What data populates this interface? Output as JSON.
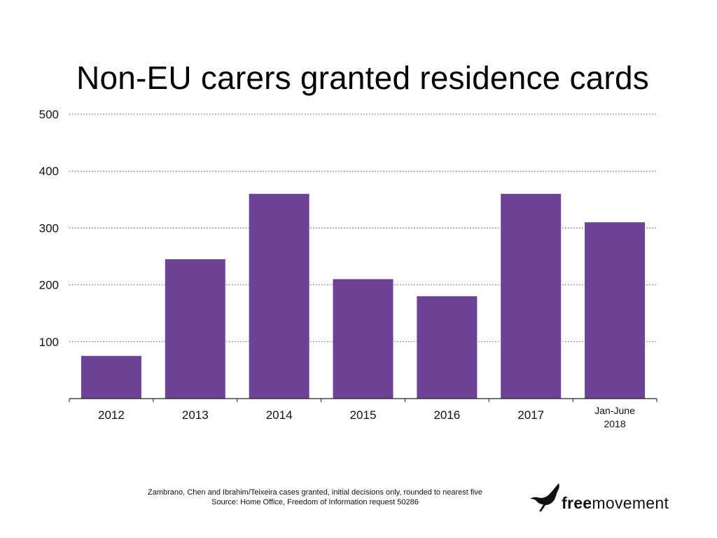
{
  "chart_data": {
    "type": "bar",
    "title": "Non-EU carers granted residence cards",
    "categories": [
      "2012",
      "2013",
      "2014",
      "2015",
      "2016",
      "2017",
      "Jan-June 2018"
    ],
    "category_lines": [
      [
        "2012"
      ],
      [
        "2013"
      ],
      [
        "2014"
      ],
      [
        "2015"
      ],
      [
        "2016"
      ],
      [
        "2017"
      ],
      [
        "Jan-June",
        "2018"
      ]
    ],
    "values": [
      75,
      245,
      360,
      210,
      180,
      360,
      310
    ],
    "ylim": [
      0,
      500
    ],
    "yticks": [
      100,
      200,
      300,
      400,
      500
    ],
    "xlabel": "",
    "ylabel": "",
    "grid": "horizontal dotted",
    "bar_color": "#6e4293"
  },
  "footnote": {
    "line1": "Zambrano, Chen and Ibrahim/Teixeira cases granted, initial decisions only, rounded to nearest five",
    "line2": "Source: Home Office, Freedom of Information request 50286"
  },
  "logo": {
    "bold": "free",
    "regular": "movement",
    "icon": "bird-icon"
  }
}
